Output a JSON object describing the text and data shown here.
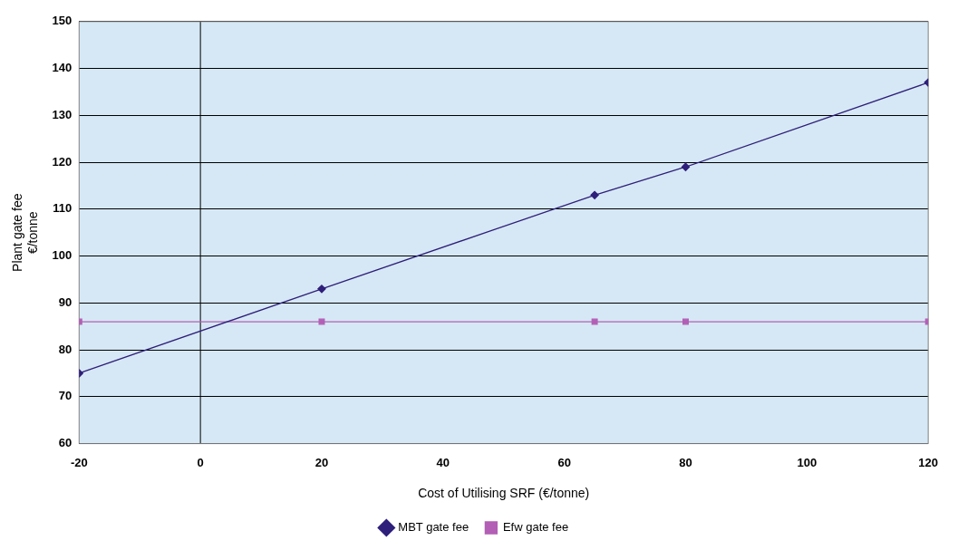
{
  "chart_data": {
    "type": "line",
    "xlabel": "Cost of Utilising SRF (€/tonne)",
    "ylabel": "Plant gate fee\n€/tonne",
    "x": [
      -20,
      20,
      65,
      80,
      120
    ],
    "series": [
      {
        "name": "MBT gate fee",
        "color": "#2e1f7a",
        "marker": "diamond",
        "values": [
          75,
          93,
          113,
          119,
          137
        ]
      },
      {
        "name": "Efw gate fee",
        "color": "#b25fb5",
        "marker": "square",
        "values": [
          86,
          86,
          86,
          86,
          86
        ]
      }
    ],
    "xlim": [
      -20,
      120
    ],
    "xticks": [
      -20,
      0,
      20,
      40,
      60,
      80,
      100,
      120
    ],
    "ylim": [
      60,
      150
    ],
    "yticks": [
      60,
      70,
      80,
      90,
      100,
      110,
      120,
      130,
      140,
      150
    ],
    "ref_lines": [
      {
        "axis": "x",
        "value": 0,
        "color": "#000000"
      }
    ],
    "grid": "y",
    "legend": "bottom",
    "line_style": "solid"
  }
}
